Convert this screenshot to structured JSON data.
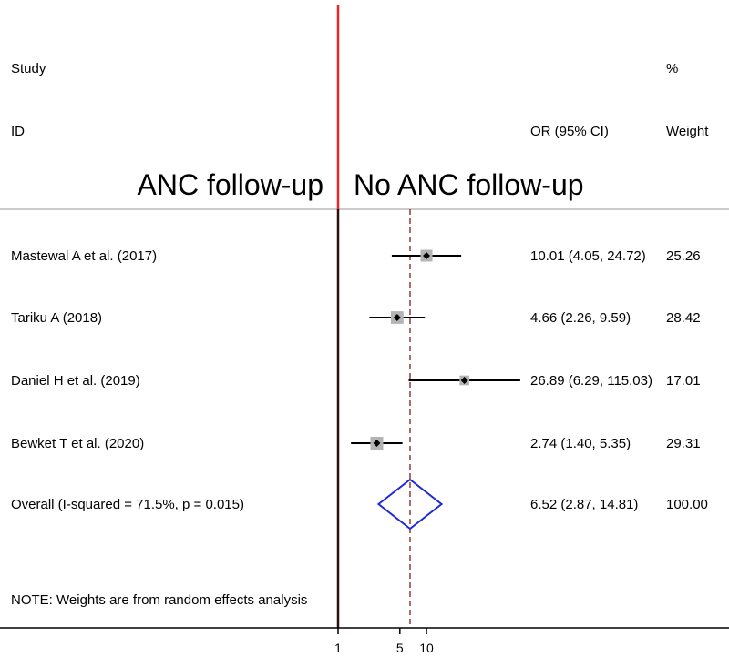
{
  "chart_data": {
    "type": "forest",
    "headers": {
      "study_line1": "Study",
      "study_line2": "ID",
      "ci_header": "OR (95% CI)",
      "weight_line1": "%",
      "weight_line2": "Weight"
    },
    "favor_left": "ANC follow-up",
    "favor_right": "No ANC follow-up",
    "x_axis": {
      "ticks": [
        1,
        5,
        10
      ]
    },
    "studies": [
      {
        "label": "Mastewal A et al. (2017)",
        "or": 10.01,
        "lower": 4.05,
        "upper": 24.72,
        "ci_text": "10.01 (4.05, 24.72)",
        "weight": 25.26,
        "weight_text": "25.26"
      },
      {
        "label": "Tariku A (2018)",
        "or": 4.66,
        "lower": 2.26,
        "upper": 9.59,
        "ci_text": "4.66 (2.26, 9.59)",
        "weight": 28.42,
        "weight_text": "28.42"
      },
      {
        "label": "Daniel H et al. (2019)",
        "or": 26.89,
        "lower": 6.29,
        "upper": 115.03,
        "ci_text": "26.89 (6.29, 115.03)",
        "weight": 17.01,
        "weight_text": "17.01"
      },
      {
        "label": "Bewket T et al. (2020)",
        "or": 2.74,
        "lower": 1.4,
        "upper": 5.35,
        "ci_text": "2.74 (1.40, 5.35)",
        "weight": 29.31,
        "weight_text": "29.31"
      }
    ],
    "overall": {
      "label": "Overall  (I-squared = 71.5%, p = 0.015)",
      "or": 6.52,
      "lower": 2.87,
      "upper": 14.81,
      "ci_text": "6.52 (2.87, 14.81)",
      "weight_text": "100.00"
    },
    "note": "NOTE: Weights are from random effects analysis",
    "colors": {
      "null_line": "#e8262a",
      "overall_line": "#8b2a2a",
      "diamond": "#1f2ad6",
      "weight_box": "#b4b4b4",
      "separator": "#bbbbbb"
    }
  }
}
